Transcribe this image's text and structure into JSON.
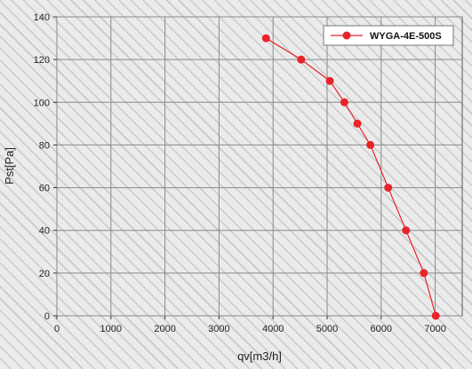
{
  "chart_data": {
    "type": "line",
    "xlabel": "qv[m3/h]",
    "ylabel": "Pst[Pa]",
    "xlim": [
      0,
      7500
    ],
    "ylim": [
      0,
      140
    ],
    "xticks": [
      0,
      1000,
      2000,
      3000,
      4000,
      5000,
      6000,
      7000
    ],
    "yticks": [
      0,
      20,
      40,
      60,
      80,
      100,
      120,
      140
    ],
    "grid": true,
    "legend_position": "top-right",
    "series": [
      {
        "name": "WYGA-4E-500S",
        "color": "#e8232a",
        "marker": "circle",
        "x": [
          3870,
          4520,
          5050,
          5320,
          5560,
          5800,
          6130,
          6460,
          6790,
          7010
        ],
        "y": [
          130,
          120,
          110,
          100,
          90,
          80,
          60,
          40,
          20,
          0
        ]
      }
    ]
  }
}
